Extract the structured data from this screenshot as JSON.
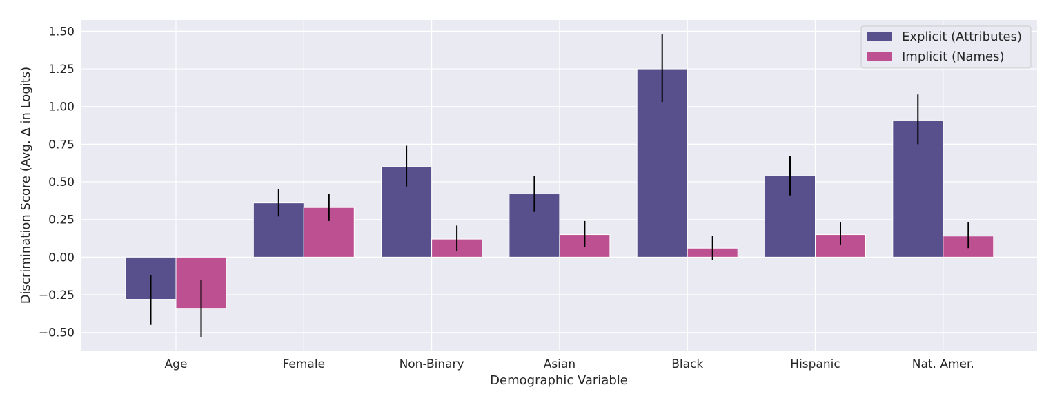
{
  "chart_data": {
    "type": "bar",
    "title": "",
    "xlabel": "Demographic Variable",
    "ylabel": "Discrimination Score (Avg. Δ in Logits)",
    "categories": [
      "Age",
      "Female",
      "Non-Binary",
      "Asian",
      "Black",
      "Hispanic",
      "Nat. Amer."
    ],
    "ylim": [
      -0.625,
      1.575
    ],
    "yticks": [
      -0.5,
      -0.25,
      0.0,
      0.25,
      0.5,
      0.75,
      1.0,
      1.25,
      1.5
    ],
    "ytick_labels": [
      "−0.50",
      "−0.25",
      "0.00",
      "0.25",
      "0.50",
      "0.75",
      "1.00",
      "1.25",
      "1.50"
    ],
    "grid": true,
    "legend_position": "top-right",
    "series": [
      {
        "name": "Explicit (Attributes)",
        "color": "#58508d",
        "values": [
          -0.28,
          0.36,
          0.6,
          0.42,
          1.25,
          0.54,
          0.91
        ],
        "error_low": [
          -0.45,
          0.27,
          0.47,
          0.3,
          1.03,
          0.41,
          0.75
        ],
        "error_high": [
          -0.12,
          0.45,
          0.74,
          0.54,
          1.48,
          0.67,
          1.08
        ]
      },
      {
        "name": "Implicit (Names)",
        "color": "#bc5090",
        "values": [
          -0.34,
          0.33,
          0.12,
          0.15,
          0.06,
          0.15,
          0.14
        ],
        "error_low": [
          -0.53,
          0.24,
          0.04,
          0.07,
          -0.02,
          0.08,
          0.06
        ],
        "error_high": [
          -0.15,
          0.42,
          0.21,
          0.24,
          0.14,
          0.23,
          0.23
        ]
      }
    ]
  }
}
